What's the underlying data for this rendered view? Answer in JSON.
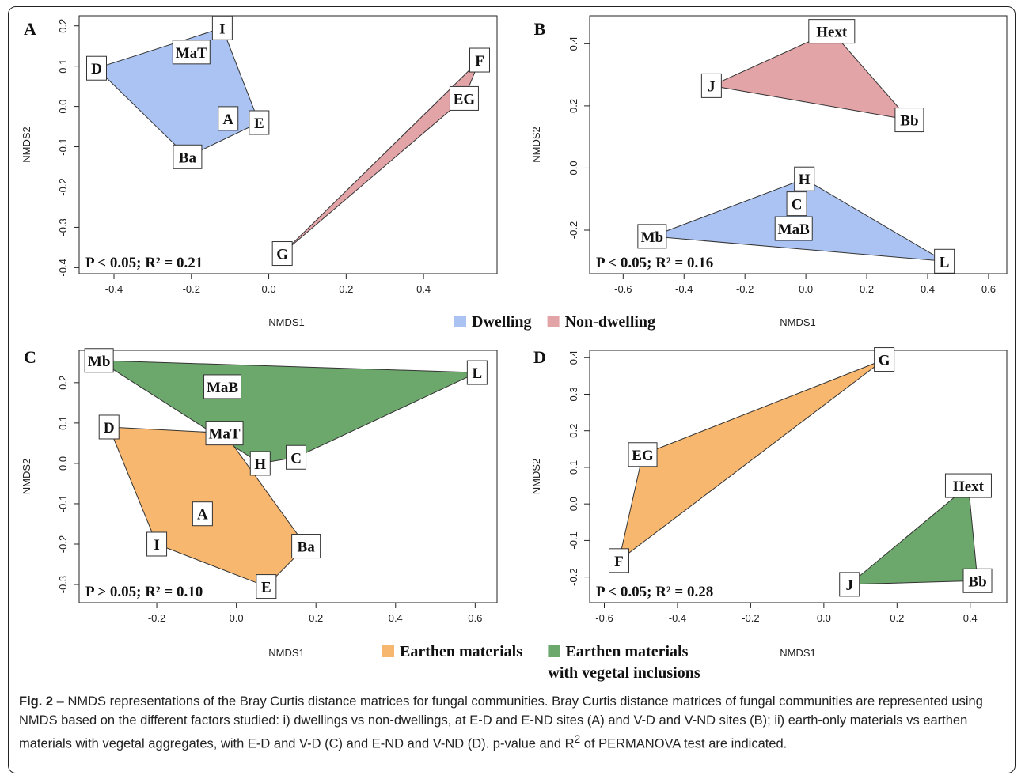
{
  "caption": {
    "label": "Fig. 2",
    "text_before_sup": " – NMDS representations of the Bray Curtis distance matrices for fungal communities. Bray Curtis distance matrices of fungal communities are represented using NMDS based on the different factors studied: i) dwellings vs non-dwellings, at E-D and E-ND sites (A) and V-D and V-ND sites (B); ii) earth-only materials vs earthen materials with vegetal aggregates, with E-D and V-D (C) and E-ND and V-ND (D). p-value and R",
    "sup": "2",
    "text_after_sup": " of PERMANOVA test are indicated."
  },
  "legends": [
    {
      "items": [
        {
          "label": "Dwelling",
          "color": "#abc3f2"
        },
        {
          "label": "Non-dwelling",
          "color": "#e3a4a8"
        }
      ]
    },
    {
      "items": [
        {
          "label": "Earthen materials",
          "color": "#f7b76e"
        },
        {
          "label": "Earthen materials",
          "label2": "with vegetal inclusions",
          "color": "#6ca86c"
        }
      ]
    }
  ],
  "chart_data": [
    {
      "panel": "A",
      "type": "scatter",
      "xlabel": "NMDS1",
      "ylabel": "NMDS2",
      "xlim": [
        -0.49,
        0.59
      ],
      "ylim": [
        -0.415,
        0.225
      ],
      "xticks": [
        -0.4,
        -0.2,
        0.0,
        0.2,
        0.4
      ],
      "yticks": [
        0.2,
        0.1,
        0.0,
        -0.1,
        -0.2,
        -0.3,
        -0.4
      ],
      "xtick_labels": [
        "-0.4",
        "-0.2",
        "0.0",
        "0.2",
        "0.4"
      ],
      "ytick_labels": [
        "0.2",
        "0.1",
        "0.0",
        "-0.1",
        "-0.2",
        "-0.3",
        "-0.4"
      ],
      "stat": "P < 0.05; R² = 0.21",
      "points": [
        {
          "label": "I",
          "x": -0.12,
          "y": 0.195,
          "group": "Dwelling"
        },
        {
          "label": "MaT",
          "x": -0.2,
          "y": 0.135,
          "group": "Dwelling"
        },
        {
          "label": "D",
          "x": -0.445,
          "y": 0.095,
          "group": "Dwelling"
        },
        {
          "label": "A",
          "x": -0.105,
          "y": -0.03,
          "group": "Dwelling"
        },
        {
          "label": "E",
          "x": -0.025,
          "y": -0.04,
          "group": "Dwelling"
        },
        {
          "label": "Ba",
          "x": -0.21,
          "y": -0.125,
          "group": "Dwelling"
        },
        {
          "label": "F",
          "x": 0.545,
          "y": 0.115,
          "group": "Non-dwelling"
        },
        {
          "label": "EG",
          "x": 0.505,
          "y": 0.02,
          "group": "Non-dwelling"
        },
        {
          "label": "G",
          "x": 0.035,
          "y": -0.365,
          "group": "Non-dwelling"
        }
      ],
      "hulls": [
        {
          "group": "Dwelling",
          "color": "#abc3f2",
          "vertices": [
            "D",
            "I",
            "E",
            "Ba"
          ]
        },
        {
          "group": "Non-dwelling",
          "color": "#e3a4a8",
          "vertices": [
            "F",
            "EG",
            "G"
          ]
        }
      ]
    },
    {
      "panel": "B",
      "type": "scatter",
      "xlabel": "NMDS1",
      "ylabel": "NMDS2",
      "xlim": [
        -0.71,
        0.66
      ],
      "ylim": [
        -0.34,
        0.49
      ],
      "xticks": [
        -0.6,
        -0.4,
        -0.2,
        0.0,
        0.2,
        0.4,
        0.6
      ],
      "yticks": [
        0.4,
        0.2,
        0.0,
        -0.2
      ],
      "xtick_labels": [
        "-0.6",
        "-0.4",
        "-0.2",
        "0.0",
        "0.2",
        "0.4",
        "0.6"
      ],
      "ytick_labels": [
        "0.4",
        "0.2",
        "0.0",
        "-0.2"
      ],
      "stat": "P < 0.05; R² = 0.16",
      "points": [
        {
          "label": "Hext",
          "x": 0.085,
          "y": 0.44,
          "group": "Non-dwelling"
        },
        {
          "label": "J",
          "x": -0.31,
          "y": 0.265,
          "group": "Non-dwelling"
        },
        {
          "label": "Bb",
          "x": 0.34,
          "y": 0.155,
          "group": "Non-dwelling"
        },
        {
          "label": "H",
          "x": -0.005,
          "y": -0.035,
          "group": "Dwelling"
        },
        {
          "label": "C",
          "x": -0.03,
          "y": -0.115,
          "group": "Dwelling"
        },
        {
          "label": "MaB",
          "x": -0.04,
          "y": -0.195,
          "group": "Dwelling"
        },
        {
          "label": "Mb",
          "x": -0.505,
          "y": -0.22,
          "group": "Dwelling"
        },
        {
          "label": "L",
          "x": 0.455,
          "y": -0.3,
          "group": "Dwelling"
        }
      ],
      "hulls": [
        {
          "group": "Non-dwelling",
          "color": "#e3a4a8",
          "vertices": [
            "J",
            "Hext",
            "Bb"
          ]
        },
        {
          "group": "Dwelling",
          "color": "#abc3f2",
          "vertices": [
            "Mb",
            "H",
            "L"
          ]
        }
      ]
    },
    {
      "panel": "C",
      "type": "scatter",
      "xlabel": "NMDS1",
      "ylabel": "NMDS2",
      "xlim": [
        -0.395,
        0.655
      ],
      "ylim": [
        -0.345,
        0.28
      ],
      "xticks": [
        -0.2,
        0.0,
        0.2,
        0.4,
        0.6
      ],
      "yticks": [
        0.2,
        0.1,
        0.0,
        -0.1,
        -0.2,
        -0.3
      ],
      "xtick_labels": [
        "-0.2",
        "0.0",
        "0.2",
        "0.4",
        "0.6"
      ],
      "ytick_labels": [
        "0.2",
        "0.1",
        "0.0",
        "-0.1",
        "-0.2",
        "-0.3"
      ],
      "stat": "P > 0.05; R² = 0.10",
      "points": [
        {
          "label": "Mb",
          "x": -0.345,
          "y": 0.255,
          "group": "Earthen materials with vegetal inclusions"
        },
        {
          "label": "L",
          "x": 0.605,
          "y": 0.225,
          "group": "Earthen materials with vegetal inclusions"
        },
        {
          "label": "MaB",
          "x": -0.035,
          "y": 0.19,
          "group": "Earthen materials with vegetal inclusions"
        },
        {
          "label": "C",
          "x": 0.15,
          "y": 0.015,
          "group": "Earthen materials with vegetal inclusions"
        },
        {
          "label": "H",
          "x": 0.06,
          "y": 0.0,
          "group": "Earthen materials with vegetal inclusions"
        },
        {
          "label": "D",
          "x": -0.32,
          "y": 0.09,
          "group": "Earthen materials"
        },
        {
          "label": "MaT",
          "x": -0.03,
          "y": 0.075,
          "group": "Earthen materials"
        },
        {
          "label": "A",
          "x": -0.085,
          "y": -0.125,
          "group": "Earthen materials"
        },
        {
          "label": "I",
          "x": -0.2,
          "y": -0.2,
          "group": "Earthen materials"
        },
        {
          "label": "Ba",
          "x": 0.175,
          "y": -0.205,
          "group": "Earthen materials"
        },
        {
          "label": "E",
          "x": 0.075,
          "y": -0.305,
          "group": "Earthen materials"
        }
      ],
      "hulls": [
        {
          "group": "Earthen materials with vegetal inclusions",
          "color": "#6ca86c",
          "vertices": [
            "Mb",
            "L",
            "C",
            "H"
          ]
        },
        {
          "group": "Earthen materials",
          "color": "#f7b76e",
          "vertices": [
            "D",
            "MaT",
            "Ba",
            "E",
            "I"
          ]
        }
      ]
    },
    {
      "panel": "D",
      "type": "scatter",
      "xlabel": "NMDS1",
      "ylabel": "NMDS2",
      "xlim": [
        -0.64,
        0.5
      ],
      "ylim": [
        -0.27,
        0.42
      ],
      "xticks": [
        -0.6,
        -0.4,
        -0.2,
        0.0,
        0.2,
        0.4
      ],
      "yticks": [
        0.4,
        0.3,
        0.2,
        0.1,
        0.0,
        -0.1,
        -0.2
      ],
      "xtick_labels": [
        "-0.6",
        "-0.4",
        "-0.2",
        "0.0",
        "0.2",
        "0.4"
      ],
      "ytick_labels": [
        "0.4",
        "0.3",
        "0.2",
        "0.1",
        "0.0",
        "-0.1",
        "-0.2"
      ],
      "stat": "P < 0.05; R² = 0.28",
      "points": [
        {
          "label": "G",
          "x": 0.165,
          "y": 0.395,
          "group": "Earthen materials"
        },
        {
          "label": "EG",
          "x": -0.495,
          "y": 0.135,
          "group": "Earthen materials"
        },
        {
          "label": "F",
          "x": -0.56,
          "y": -0.155,
          "group": "Earthen materials"
        },
        {
          "label": "Hext",
          "x": 0.395,
          "y": 0.05,
          "group": "Earthen materials with vegetal inclusions"
        },
        {
          "label": "J",
          "x": 0.07,
          "y": -0.22,
          "group": "Earthen materials with vegetal inclusions"
        },
        {
          "label": "Bb",
          "x": 0.42,
          "y": -0.21,
          "group": "Earthen materials with vegetal inclusions"
        }
      ],
      "hulls": [
        {
          "group": "Earthen materials",
          "color": "#f7b76e",
          "vertices": [
            "G",
            "EG",
            "F"
          ]
        },
        {
          "group": "Earthen materials with vegetal inclusions",
          "color": "#6ca86c",
          "vertices": [
            "Hext",
            "Bb",
            "J"
          ]
        }
      ]
    }
  ]
}
